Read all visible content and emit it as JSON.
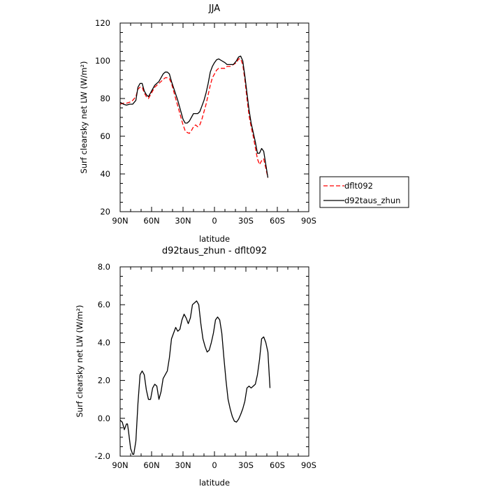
{
  "chart_data": [
    {
      "type": "line",
      "title": "JJA",
      "xlabel": "latitude",
      "ylabel": "Surf clearsky net LW (W/m²)",
      "xlim": [
        90,
        -90
      ],
      "ylim": [
        20,
        120
      ],
      "x_ticks": [
        90,
        60,
        30,
        0,
        -30,
        -60,
        -90
      ],
      "x_tick_labels": [
        "90N",
        "60N",
        "30N",
        "0",
        "30S",
        "60S",
        "90S"
      ],
      "y_ticks": [
        20,
        40,
        60,
        80,
        100,
        120
      ],
      "y_tick_labels": [
        "20",
        "40",
        "60",
        "80",
        "100",
        "120"
      ],
      "legend_position": "right, outside, bottom",
      "series": [
        {
          "name": "dflt092",
          "color": "#ff0000",
          "dash": true,
          "points": [
            [
              90,
              77
            ],
            [
              87,
              77.5
            ],
            [
              84,
              77.5
            ],
            [
              81,
              78
            ],
            [
              78,
              79
            ],
            [
              75,
              81
            ],
            [
              73,
              85
            ],
            [
              71,
              86
            ],
            [
              69,
              86
            ],
            [
              67,
              83
            ],
            [
              65,
              81
            ],
            [
              63,
              80
            ],
            [
              61,
              82
            ],
            [
              59,
              84
            ],
            [
              57,
              86
            ],
            [
              55,
              87
            ],
            [
              53,
              88
            ],
            [
              51,
              89
            ],
            [
              49,
              90
            ],
            [
              47,
              91
            ],
            [
              45,
              91
            ],
            [
              43,
              90.5
            ],
            [
              41,
              88
            ],
            [
              38,
              82
            ],
            [
              35,
              76
            ],
            [
              32,
              70
            ],
            [
              30,
              66
            ],
            [
              28,
              63
            ],
            [
              26,
              62
            ],
            [
              24,
              61.5
            ],
            [
              22,
              63
            ],
            [
              20,
              65
            ],
            [
              18,
              66
            ],
            [
              16,
              65
            ],
            [
              14,
              66
            ],
            [
              12,
              69
            ],
            [
              10,
              73
            ],
            [
              8,
              77
            ],
            [
              6,
              82
            ],
            [
              4,
              87
            ],
            [
              2,
              91
            ],
            [
              0,
              93
            ],
            [
              -2,
              95
            ],
            [
              -4,
              96
            ],
            [
              -7,
              96
            ],
            [
              -10,
              96
            ],
            [
              -12,
              97
            ],
            [
              -15,
              97
            ],
            [
              -18,
              98
            ],
            [
              -21,
              99
            ],
            [
              -23,
              101
            ],
            [
              -25,
              101
            ],
            [
              -27,
              98
            ],
            [
              -29,
              90
            ],
            [
              -31,
              80
            ],
            [
              -33,
              71
            ],
            [
              -35,
              65
            ],
            [
              -37,
              60
            ],
            [
              -39,
              54
            ],
            [
              -41,
              48
            ],
            [
              -43,
              45
            ],
            [
              -45,
              47
            ],
            [
              -47,
              48
            ],
            [
              -49,
              43
            ],
            [
              -51,
              38
            ]
          ]
        },
        {
          "name": "d92taus_zhun",
          "color": "#000000",
          "dash": false,
          "points": [
            [
              90,
              78
            ],
            [
              87,
              77
            ],
            [
              84,
              76.5
            ],
            [
              81,
              77
            ],
            [
              78,
              77
            ],
            [
              75,
              79
            ],
            [
              73,
              86
            ],
            [
              71,
              88
            ],
            [
              69,
              88
            ],
            [
              67,
              84
            ],
            [
              65,
              82
            ],
            [
              63,
              81
            ],
            [
              61,
              83
            ],
            [
              59,
              85
            ],
            [
              57,
              87
            ],
            [
              55,
              88
            ],
            [
              53,
              89
            ],
            [
              51,
              91
            ],
            [
              49,
              93
            ],
            [
              47,
              94
            ],
            [
              45,
              94
            ],
            [
              43,
              93
            ],
            [
              41,
              89
            ],
            [
              38,
              84
            ],
            [
              35,
              79
            ],
            [
              32,
              73
            ],
            [
              30,
              69
            ],
            [
              28,
              67
            ],
            [
              26,
              67
            ],
            [
              24,
              68
            ],
            [
              22,
              70
            ],
            [
              20,
              72
            ],
            [
              18,
              72
            ],
            [
              16,
              72
            ],
            [
              14,
              73
            ],
            [
              12,
              76
            ],
            [
              10,
              79
            ],
            [
              8,
              83
            ],
            [
              6,
              88
            ],
            [
              4,
              94
            ],
            [
              2,
              97
            ],
            [
              0,
              99
            ],
            [
              -2,
              100.5
            ],
            [
              -4,
              101
            ],
            [
              -7,
              100
            ],
            [
              -10,
              99
            ],
            [
              -12,
              98
            ],
            [
              -15,
              98
            ],
            [
              -18,
              98
            ],
            [
              -21,
              100
            ],
            [
              -23,
              102
            ],
            [
              -25,
              102.5
            ],
            [
              -27,
              100
            ],
            [
              -29,
              92
            ],
            [
              -31,
              83
            ],
            [
              -33,
              74
            ],
            [
              -35,
              67
            ],
            [
              -37,
              62
            ],
            [
              -39,
              57
            ],
            [
              -41,
              51
            ],
            [
              -43,
              51
            ],
            [
              -45,
              53.5
            ],
            [
              -47,
              52
            ],
            [
              -49,
              45
            ],
            [
              -51,
              38
            ]
          ]
        }
      ]
    },
    {
      "type": "line",
      "title": "d92taus_zhun - dflt092",
      "xlabel": "latitude",
      "ylabel": "Surf clearsky net LW (W/m²)",
      "xlim": [
        90,
        -90
      ],
      "ylim": [
        -2,
        8
      ],
      "x_ticks": [
        90,
        60,
        30,
        0,
        -30,
        -60,
        -90
      ],
      "x_tick_labels": [
        "90N",
        "60N",
        "30N",
        "0",
        "30S",
        "60S",
        "90S"
      ],
      "y_ticks": [
        -2,
        0,
        2,
        4,
        6,
        8
      ],
      "y_tick_labels": [
        "-2.0",
        "0.0",
        "2.0",
        "4.0",
        "6.0",
        "8.0"
      ],
      "series": [
        {
          "color": "#000000",
          "dash": false,
          "points": [
            [
              90,
              -0.1
            ],
            [
              88,
              -0.2
            ],
            [
              86,
              -0.6
            ],
            [
              84,
              -0.3
            ],
            [
              83,
              -0.3
            ],
            [
              82,
              -0.7
            ],
            [
              80,
              -1.6
            ],
            [
              78,
              -1.9
            ],
            [
              77,
              -1.9
            ],
            [
              75,
              -1.2
            ],
            [
              73,
              0.8
            ],
            [
              71,
              2.3
            ],
            [
              69,
              2.5
            ],
            [
              67,
              2.3
            ],
            [
              65,
              1.5
            ],
            [
              63,
              1.0
            ],
            [
              61,
              1.0
            ],
            [
              59,
              1.6
            ],
            [
              57,
              1.8
            ],
            [
              55,
              1.7
            ],
            [
              53,
              1.0
            ],
            [
              51,
              1.4
            ],
            [
              49,
              2.1
            ],
            [
              47,
              2.3
            ],
            [
              45,
              2.5
            ],
            [
              43,
              3.2
            ],
            [
              41,
              4.2
            ],
            [
              39,
              4.5
            ],
            [
              37,
              4.8
            ],
            [
              35,
              4.6
            ],
            [
              33,
              4.7
            ],
            [
              31,
              5.2
            ],
            [
              29,
              5.5
            ],
            [
              27,
              5.3
            ],
            [
              25,
              5.0
            ],
            [
              23,
              5.3
            ],
            [
              21,
              6.0
            ],
            [
              19,
              6.1
            ],
            [
              17,
              6.2
            ],
            [
              15,
              6.0
            ],
            [
              13,
              5.0
            ],
            [
              11,
              4.2
            ],
            [
              9,
              3.8
            ],
            [
              7,
              3.5
            ],
            [
              5,
              3.6
            ],
            [
              3,
              4.0
            ],
            [
              1,
              4.5
            ],
            [
              -1,
              5.2
            ],
            [
              -3,
              5.35
            ],
            [
              -5,
              5.2
            ],
            [
              -7,
              4.5
            ],
            [
              -9,
              3.2
            ],
            [
              -11,
              2.0
            ],
            [
              -13,
              1.0
            ],
            [
              -15,
              0.5
            ],
            [
              -17,
              0.1
            ],
            [
              -19,
              -0.15
            ],
            [
              -21,
              -0.2
            ],
            [
              -23,
              -0.05
            ],
            [
              -25,
              0.2
            ],
            [
              -27,
              0.5
            ],
            [
              -29,
              0.9
            ],
            [
              -31,
              1.6
            ],
            [
              -33,
              1.7
            ],
            [
              -35,
              1.6
            ],
            [
              -37,
              1.7
            ],
            [
              -39,
              1.8
            ],
            [
              -41,
              2.3
            ],
            [
              -43,
              3.1
            ],
            [
              -45,
              4.2
            ],
            [
              -47,
              4.3
            ],
            [
              -49,
              4.0
            ],
            [
              -51,
              3.5
            ],
            [
              -53,
              1.6
            ]
          ]
        }
      ]
    }
  ]
}
